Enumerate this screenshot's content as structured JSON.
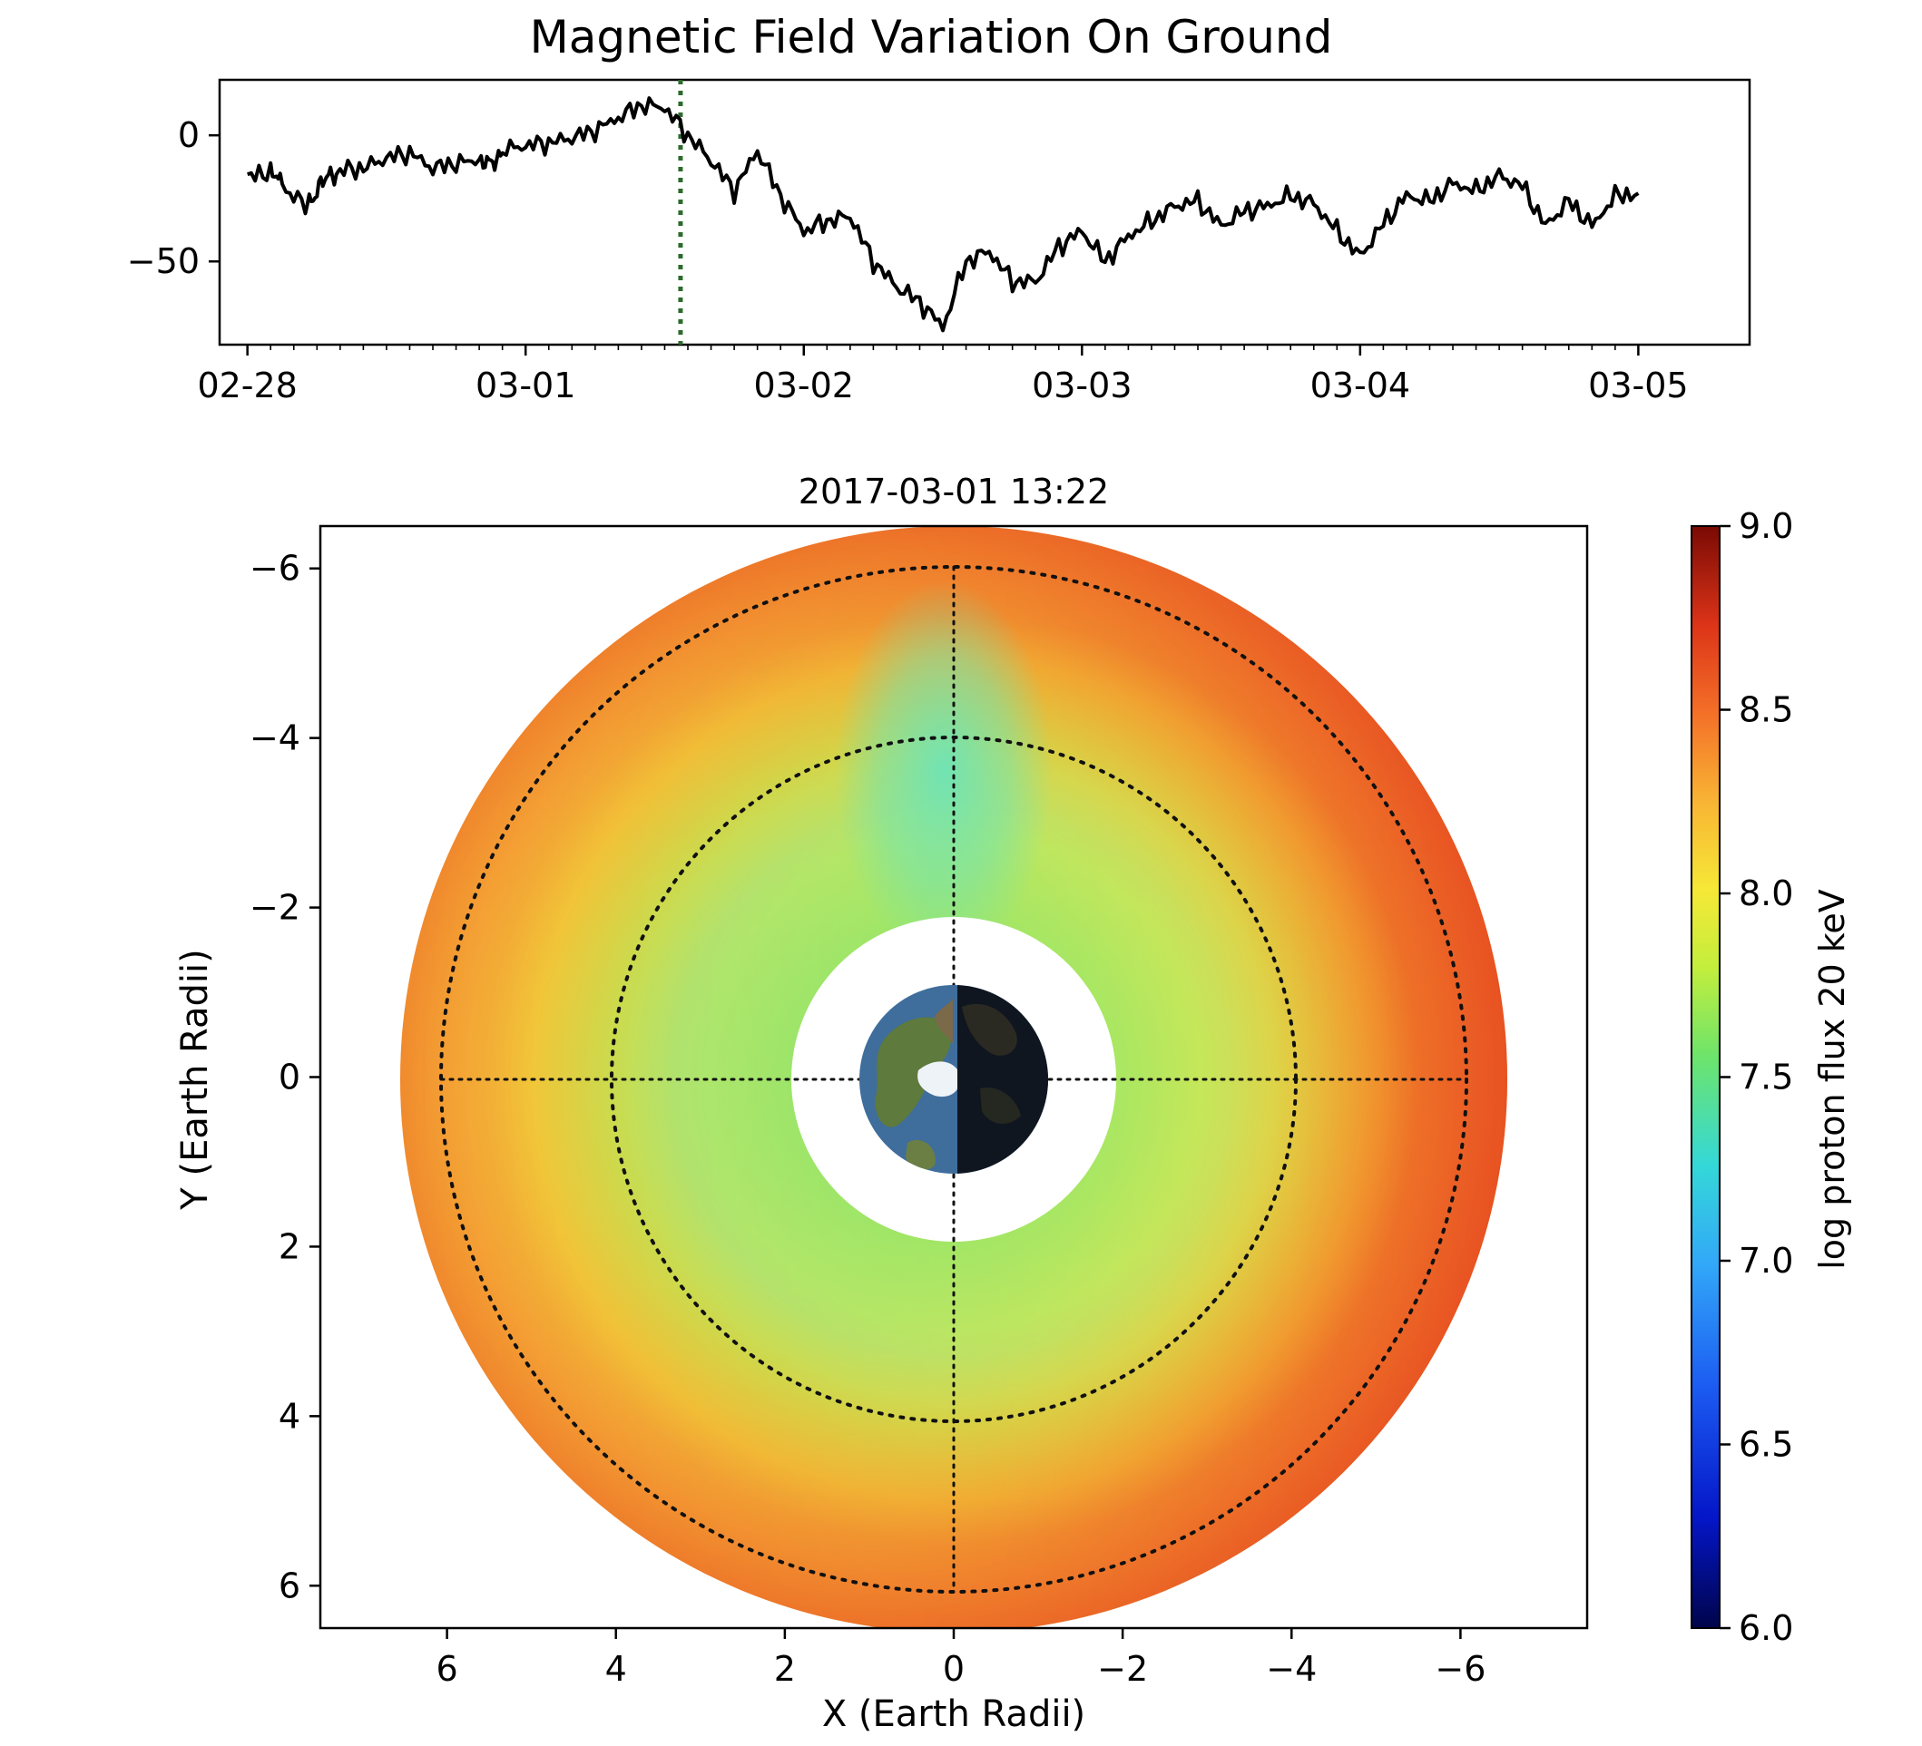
{
  "chart_data": [
    {
      "type": "line",
      "title": "Magnetic Field Variation On Ground",
      "xlabel": "",
      "ylabel": "",
      "xlim": [
        "2017-02-27T21:36",
        "2017-03-05T09:36"
      ],
      "ylim": [
        -83,
        22
      ],
      "x_ticks": [
        "02-28",
        "03-01",
        "03-02",
        "03-03",
        "03-04",
        "03-05"
      ],
      "y_ticks": [
        0,
        -50
      ],
      "grid": false,
      "marker_time": "2017-03-01 13:22",
      "marker_color": "#2d6a2d",
      "line_color": "#000000",
      "series": [
        {
          "x_hours_from_02-28": [
            0,
            2,
            3,
            5,
            6,
            7,
            8,
            10,
            12,
            14,
            16,
            18,
            20,
            21,
            22,
            24,
            26,
            28,
            30,
            32,
            34,
            36,
            38,
            40,
            42,
            44,
            46,
            48,
            50,
            52,
            54,
            56,
            58,
            60,
            62,
            64,
            66,
            68,
            70,
            72,
            74,
            76,
            78,
            80,
            82,
            84,
            86,
            88,
            90,
            92,
            94,
            96,
            98,
            100,
            102,
            104,
            106,
            108,
            110,
            112,
            114,
            116,
            118,
            120
          ],
          "values": [
            -17,
            -14,
            -20,
            -28,
            -22,
            -16,
            -14,
            -13,
            -9,
            -7,
            -13,
            -11,
            -10,
            -12,
            -6,
            -4,
            -3,
            -1,
            2,
            7,
            12,
            11,
            0,
            -10,
            -22,
            -6,
            -24,
            -38,
            -34,
            -32,
            -50,
            -60,
            -66,
            -76,
            -50,
            -46,
            -58,
            -58,
            -44,
            -38,
            -50,
            -40,
            -34,
            -28,
            -26,
            -36,
            -30,
            -28,
            -24,
            -27,
            -38,
            -48,
            -35,
            -24,
            -26,
            -19,
            -22,
            -16,
            -20,
            -36,
            -26,
            -36,
            -24,
            -23
          ]
        }
      ]
    },
    {
      "type": "heatmap",
      "title": "2017-03-01 13:22",
      "xlabel": "X (Earth Radii)",
      "ylabel": "Y (Earth Radii)",
      "xlim": [
        7.5,
        -7.5
      ],
      "ylim": [
        6.5,
        -6.5
      ],
      "x_ticks": [
        6,
        4,
        2,
        0,
        -2,
        -4,
        -6
      ],
      "y_ticks": [
        -6,
        -4,
        -2,
        0,
        2,
        4,
        6
      ],
      "x_tick_labels": [
        "6",
        "4",
        "2",
        "0",
        "−2",
        "−4",
        "−6"
      ],
      "y_tick_labels": [
        "−6",
        "−4",
        "−2",
        "0",
        "2",
        "4",
        "6"
      ],
      "inner_radius": 1.9,
      "outer_radius": 6.5,
      "dotted_circles": [
        4,
        6
      ],
      "colorbar": {
        "label": "log proton flux 20 keV",
        "min": 6.0,
        "max": 9.0,
        "ticks": [
          "6.0",
          "6.5",
          "7.0",
          "7.5",
          "8.0",
          "8.5",
          "9.0"
        ],
        "colormap": "turbo"
      },
      "flux_description_values": {
        "dayside_inner": 7.3,
        "dayside_outer": 8.2,
        "nightside_inner": 7.9,
        "nightside_outer": 8.7
      }
    }
  ]
}
